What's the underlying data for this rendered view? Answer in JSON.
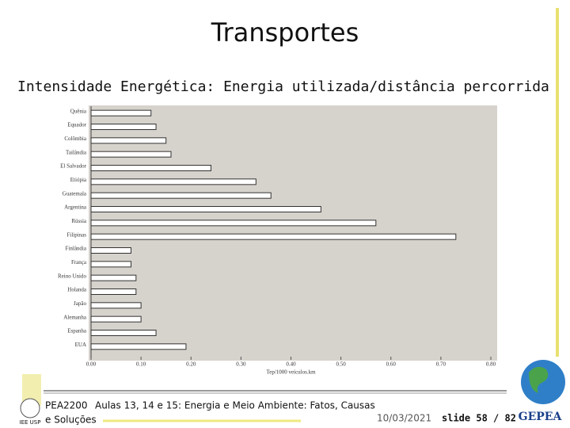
{
  "chart_data": {
    "type": "hbar",
    "title": "Transportes",
    "subtitle": "Intensidade Energética: Energia utilizada/distância percorrida",
    "x_label": "Tep/1000 veículos.km",
    "categories": [
      "Quênia",
      "Equador",
      "Colômbia",
      "Tailândia",
      "El Salvador",
      "Etiópia",
      "Guatemala",
      "Argentina",
      "Rússia",
      "Filipinas",
      "Finlândia",
      "França",
      "Reino Unido",
      "Holanda",
      "Japão",
      "Alemanha",
      "Espanha",
      "EUA"
    ],
    "values": [
      0.12,
      0.13,
      0.15,
      0.16,
      0.24,
      0.33,
      0.36,
      0.46,
      0.57,
      0.73,
      0.08,
      0.08,
      0.09,
      0.09,
      0.1,
      0.1,
      0.13,
      0.19
    ],
    "color": "#ffffff",
    "xlim": [
      0,
      0.8
    ],
    "xticks": [
      {
        "value": 0,
        "label": "0.00"
      },
      {
        "value": 0.1,
        "label": "0.10"
      },
      {
        "value": 0.2,
        "label": "0.20"
      },
      {
        "value": 0.3,
        "label": "0.30"
      },
      {
        "value": 0.4,
        "label": "0.40"
      },
      {
        "value": 0.5,
        "label": "0.50"
      },
      {
        "value": 0.6,
        "label": "0.60"
      },
      {
        "value": 0.7,
        "label": "0.70"
      },
      {
        "value": 0.8,
        "label": "0.80"
      }
    ]
  },
  "footer": {
    "course": "PEA2200",
    "line1": "Aulas 13, 14 e 15: Energia e Meio Ambiente: Fatos, Causas",
    "line2": "e Soluções",
    "date": "10/03/2021",
    "slide": "slide 58 / 82",
    "logo": "GEPEA",
    "left_logo": "IEE USP"
  }
}
